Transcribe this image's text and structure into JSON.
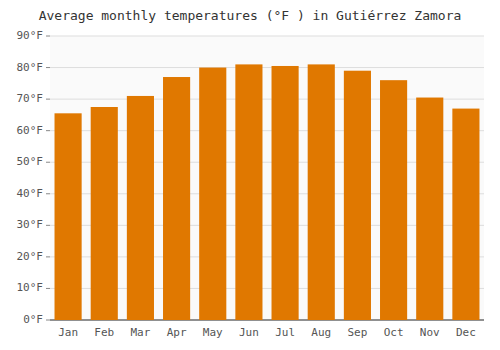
{
  "chart_data": {
    "type": "bar",
    "title": "Average monthly temperatures (°F ) in Gutiérrez Zamora",
    "categories": [
      "Jan",
      "Feb",
      "Mar",
      "Apr",
      "May",
      "Jun",
      "Jul",
      "Aug",
      "Sep",
      "Oct",
      "Nov",
      "Dec"
    ],
    "values": [
      65.5,
      67.5,
      71.0,
      77.0,
      80.0,
      81.0,
      80.5,
      81.0,
      79.0,
      76.0,
      70.5,
      67.0
    ],
    "color": "#E07800",
    "ylim": [
      0,
      90
    ],
    "yticks": [
      {
        "value": 0,
        "label": "0°F"
      },
      {
        "value": 10,
        "label": "10°F"
      },
      {
        "value": 20,
        "label": "20°F"
      },
      {
        "value": 30,
        "label": "30°F"
      },
      {
        "value": 40,
        "label": "40°F"
      },
      {
        "value": 50,
        "label": "50°F"
      },
      {
        "value": 60,
        "label": "60°F"
      },
      {
        "value": 70,
        "label": "70°F"
      },
      {
        "value": 80,
        "label": "80°F"
      },
      {
        "value": 90,
        "label": "90°F"
      }
    ],
    "grid": true
  }
}
